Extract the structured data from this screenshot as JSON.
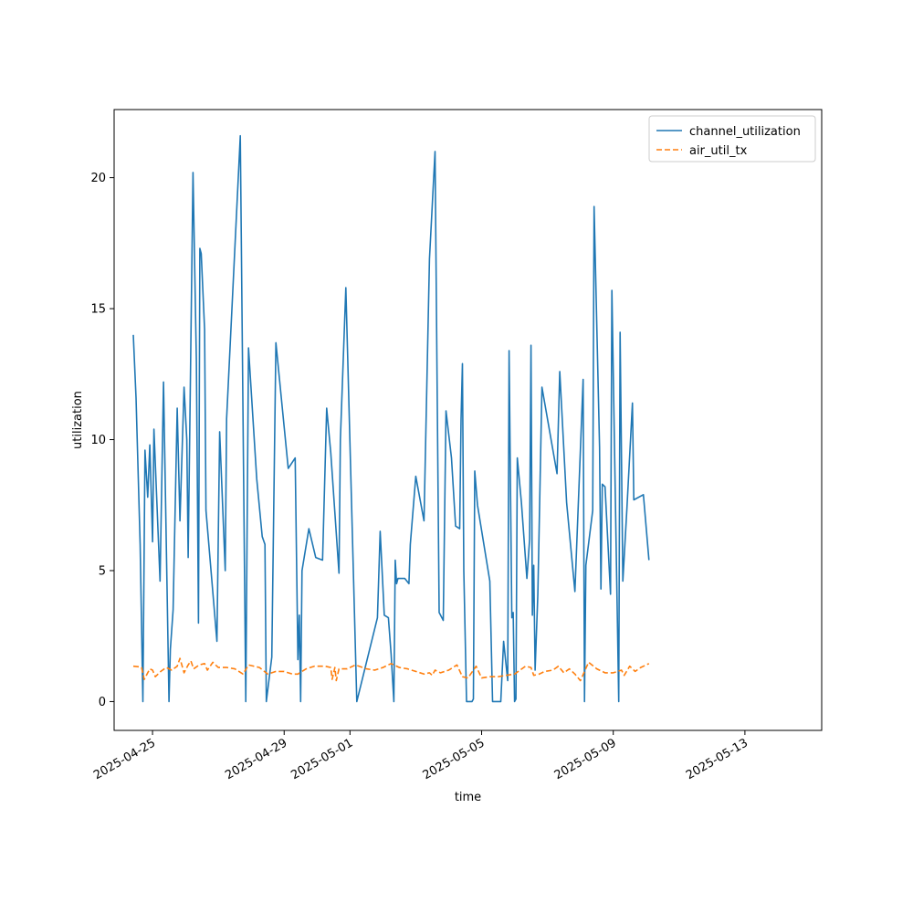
{
  "chart_data": {
    "type": "line",
    "xlabel": "time",
    "ylabel": "utilization",
    "x_type": "date",
    "xlim": [
      "2025-04-23T20:00",
      "2025-05-15T08:00"
    ],
    "ylim": [
      -1.1,
      22.6
    ],
    "x_ticks": [
      "2025-04-25",
      "2025-04-29",
      "2025-05-01",
      "2025-05-05",
      "2025-05-09",
      "2025-05-13"
    ],
    "y_ticks": [
      0,
      5,
      10,
      15,
      20
    ],
    "grid": false,
    "legend_position": "top-right",
    "series": [
      {
        "name": "channel_utilization",
        "color": "#1f77b4",
        "style": "solid",
        "points": [
          [
            "2025-04-24T10:00",
            14.0
          ],
          [
            "2025-04-24T12:00",
            11.6
          ],
          [
            "2025-04-24T15:00",
            6.0
          ],
          [
            "2025-04-24T17:00",
            0.0
          ],
          [
            "2025-04-24T18:30",
            9.6
          ],
          [
            "2025-04-24T20:30",
            7.8
          ],
          [
            "2025-04-24T22:00",
            9.8
          ],
          [
            "2025-04-25T00:00",
            6.1
          ],
          [
            "2025-04-25T01:00",
            10.4
          ],
          [
            "2025-04-25T05:30",
            4.6
          ],
          [
            "2025-04-25T08:00",
            12.2
          ],
          [
            "2025-04-25T12:00",
            0.0
          ],
          [
            "2025-04-25T13:00",
            2.0
          ],
          [
            "2025-04-25T15:00",
            3.5
          ],
          [
            "2025-04-25T18:00",
            11.2
          ],
          [
            "2025-04-25T20:00",
            6.9
          ],
          [
            "2025-04-25T23:00",
            12.0
          ],
          [
            "2025-04-26T01:00",
            10.0
          ],
          [
            "2025-04-26T02:00",
            5.5
          ],
          [
            "2025-04-26T05:30",
            20.2
          ],
          [
            "2025-04-26T08:00",
            13.0
          ],
          [
            "2025-04-26T09:30",
            3.0
          ],
          [
            "2025-04-26T10:30",
            17.3
          ],
          [
            "2025-04-26T11:30",
            17.1
          ],
          [
            "2025-04-26T14:00",
            14.2
          ],
          [
            "2025-04-26T15:00",
            7.3
          ],
          [
            "2025-04-26T23:00",
            2.3
          ],
          [
            "2025-04-27T01:00",
            10.3
          ],
          [
            "2025-04-27T05:00",
            5.0
          ],
          [
            "2025-04-27T06:00",
            10.8
          ],
          [
            "2025-04-27T16:00",
            21.6
          ],
          [
            "2025-04-27T20:00",
            0.0
          ],
          [
            "2025-04-27T22:00",
            13.5
          ],
          [
            "2025-04-28T04:00",
            8.5
          ],
          [
            "2025-04-28T08:00",
            6.3
          ],
          [
            "2025-04-28T10:00",
            6.0
          ],
          [
            "2025-04-28T11:00",
            0.0
          ],
          [
            "2025-04-28T15:00",
            1.7
          ],
          [
            "2025-04-28T18:00",
            13.7
          ],
          [
            "2025-04-29T00:00",
            10.5
          ],
          [
            "2025-04-29T03:00",
            8.9
          ],
          [
            "2025-04-29T08:00",
            9.3
          ],
          [
            "2025-04-29T10:00",
            1.6
          ],
          [
            "2025-04-29T11:00",
            3.3
          ],
          [
            "2025-04-29T12:00",
            0.0
          ],
          [
            "2025-04-29T13:00",
            5.0
          ],
          [
            "2025-04-29T18:00",
            6.6
          ],
          [
            "2025-04-29T23:00",
            5.5
          ],
          [
            "2025-04-30T04:00",
            5.4
          ],
          [
            "2025-04-30T07:00",
            11.2
          ],
          [
            "2025-04-30T10:00",
            9.5
          ],
          [
            "2025-04-30T16:00",
            4.9
          ],
          [
            "2025-04-30T17:00",
            10.0
          ],
          [
            "2025-04-30T21:00",
            15.8
          ],
          [
            "2025-05-01T05:00",
            0.0
          ],
          [
            "2025-05-01T20:00",
            3.2
          ],
          [
            "2025-05-01T22:00",
            6.5
          ],
          [
            "2025-05-02T01:00",
            3.3
          ],
          [
            "2025-05-02T04:00",
            3.2
          ],
          [
            "2025-05-02T06:00",
            1.8
          ],
          [
            "2025-05-02T08:00",
            0.0
          ],
          [
            "2025-05-02T09:00",
            5.4
          ],
          [
            "2025-05-02T10:00",
            4.5
          ],
          [
            "2025-05-02T11:00",
            4.7
          ],
          [
            "2025-05-02T16:00",
            4.7
          ],
          [
            "2025-05-02T19:00",
            4.5
          ],
          [
            "2025-05-02T20:00",
            6.0
          ],
          [
            "2025-05-03T00:00",
            8.6
          ],
          [
            "2025-05-03T06:00",
            6.9
          ],
          [
            "2025-05-03T10:00",
            16.9
          ],
          [
            "2025-05-03T14:00",
            21.0
          ],
          [
            "2025-05-03T17:00",
            3.4
          ],
          [
            "2025-05-03T20:00",
            3.1
          ],
          [
            "2025-05-03T22:00",
            11.1
          ],
          [
            "2025-05-04T02:00",
            9.3
          ],
          [
            "2025-05-04T05:00",
            6.7
          ],
          [
            "2025-05-04T08:00",
            6.6
          ],
          [
            "2025-05-04T09:00",
            10.8
          ],
          [
            "2025-05-04T10:00",
            12.9
          ],
          [
            "2025-05-04T11:00",
            5.0
          ],
          [
            "2025-05-04T13:00",
            0.0
          ],
          [
            "2025-05-04T17:00",
            0.0
          ],
          [
            "2025-05-04T18:00",
            0.1
          ],
          [
            "2025-05-04T19:00",
            8.8
          ],
          [
            "2025-05-04T21:00",
            7.5
          ],
          [
            "2025-05-05T06:00",
            4.6
          ],
          [
            "2025-05-05T08:00",
            0.0
          ],
          [
            "2025-05-05T14:00",
            0.0
          ],
          [
            "2025-05-05T16:00",
            2.3
          ],
          [
            "2025-05-05T19:00",
            0.8
          ],
          [
            "2025-05-05T20:00",
            13.4
          ],
          [
            "2025-05-05T22:00",
            3.2
          ],
          [
            "2025-05-05T23:00",
            3.4
          ],
          [
            "2025-05-06T00:00",
            0.0
          ],
          [
            "2025-05-06T01:00",
            0.1
          ],
          [
            "2025-05-06T02:00",
            9.3
          ],
          [
            "2025-05-06T05:00",
            7.6
          ],
          [
            "2025-05-06T09:00",
            4.7
          ],
          [
            "2025-05-06T11:00",
            6.2
          ],
          [
            "2025-05-06T12:00",
            13.6
          ],
          [
            "2025-05-06T13:00",
            3.3
          ],
          [
            "2025-05-06T14:00",
            5.2
          ],
          [
            "2025-05-06T15:00",
            1.2
          ],
          [
            "2025-05-06T17:00",
            4.1
          ],
          [
            "2025-05-06T20:00",
            12.0
          ],
          [
            "2025-05-07T07:00",
            8.7
          ],
          [
            "2025-05-07T09:00",
            12.6
          ],
          [
            "2025-05-07T14:00",
            7.6
          ],
          [
            "2025-05-07T20:00",
            4.2
          ],
          [
            "2025-05-08T00:00",
            9.6
          ],
          [
            "2025-05-08T02:00",
            12.3
          ],
          [
            "2025-05-08T03:00",
            0.0
          ],
          [
            "2025-05-08T04:00",
            5.2
          ],
          [
            "2025-05-08T09:00",
            7.3
          ],
          [
            "2025-05-08T10:00",
            18.9
          ],
          [
            "2025-05-08T14:00",
            9.7
          ],
          [
            "2025-05-08T15:00",
            4.3
          ],
          [
            "2025-05-08T16:00",
            8.3
          ],
          [
            "2025-05-08T18:00",
            8.2
          ],
          [
            "2025-05-08T22:00",
            4.1
          ],
          [
            "2025-05-08T23:00",
            15.7
          ],
          [
            "2025-05-09T04:00",
            0.0
          ],
          [
            "2025-05-09T05:00",
            14.1
          ],
          [
            "2025-05-09T07:00",
            4.6
          ],
          [
            "2025-05-09T10:00",
            7.4
          ],
          [
            "2025-05-09T14:00",
            11.4
          ],
          [
            "2025-05-09T15:00",
            7.7
          ],
          [
            "2025-05-09T22:00",
            7.9
          ],
          [
            "2025-05-10T02:00",
            5.4
          ]
        ]
      },
      {
        "name": "air_util_tx",
        "color": "#ff7f0e",
        "style": "dashed",
        "points": [
          [
            "2025-04-24T10:00",
            1.35
          ],
          [
            "2025-04-24T14:00",
            1.33
          ],
          [
            "2025-04-24T16:00",
            1.3
          ],
          [
            "2025-04-24T18:00",
            0.85
          ],
          [
            "2025-04-24T22:00",
            1.25
          ],
          [
            "2025-04-25T00:00",
            1.2
          ],
          [
            "2025-04-25T02:00",
            0.95
          ],
          [
            "2025-04-25T06:00",
            1.15
          ],
          [
            "2025-04-25T10:00",
            1.3
          ],
          [
            "2025-04-25T14:00",
            1.2
          ],
          [
            "2025-04-25T18:00",
            1.35
          ],
          [
            "2025-04-25T20:00",
            1.65
          ],
          [
            "2025-04-25T23:00",
            1.1
          ],
          [
            "2025-04-26T02:00",
            1.4
          ],
          [
            "2025-04-26T04:00",
            1.55
          ],
          [
            "2025-04-26T06:00",
            1.25
          ],
          [
            "2025-04-26T10:00",
            1.4
          ],
          [
            "2025-04-26T14:00",
            1.45
          ],
          [
            "2025-04-26T16:00",
            1.2
          ],
          [
            "2025-04-26T20:00",
            1.5
          ],
          [
            "2025-04-27T00:00",
            1.3
          ],
          [
            "2025-04-27T06:00",
            1.3
          ],
          [
            "2025-04-27T12:00",
            1.25
          ],
          [
            "2025-04-27T18:00",
            1.05
          ],
          [
            "2025-04-27T22:00",
            1.4
          ],
          [
            "2025-04-28T06:00",
            1.3
          ],
          [
            "2025-04-28T12:00",
            1.05
          ],
          [
            "2025-04-28T18:00",
            1.15
          ],
          [
            "2025-04-29T00:00",
            1.15
          ],
          [
            "2025-04-29T06:00",
            1.05
          ],
          [
            "2025-04-29T10:00",
            1.05
          ],
          [
            "2025-04-29T16:00",
            1.25
          ],
          [
            "2025-04-29T22:00",
            1.35
          ],
          [
            "2025-04-30T06:00",
            1.35
          ],
          [
            "2025-04-30T10:00",
            1.3
          ],
          [
            "2025-04-30T11:00",
            0.85
          ],
          [
            "2025-04-30T13:00",
            1.3
          ],
          [
            "2025-04-30T14:00",
            0.8
          ],
          [
            "2025-04-30T16:00",
            1.25
          ],
          [
            "2025-04-30T22:00",
            1.25
          ],
          [
            "2025-05-01T04:00",
            1.4
          ],
          [
            "2025-05-01T12:00",
            1.25
          ],
          [
            "2025-05-01T18:00",
            1.2
          ],
          [
            "2025-05-02T00:00",
            1.3
          ],
          [
            "2025-05-02T06:00",
            1.45
          ],
          [
            "2025-05-02T12:00",
            1.3
          ],
          [
            "2025-05-02T18:00",
            1.25
          ],
          [
            "2025-05-03T00:00",
            1.15
          ],
          [
            "2025-05-03T06:00",
            1.05
          ],
          [
            "2025-05-03T10:00",
            1.1
          ],
          [
            "2025-05-03T12:00",
            1.0
          ],
          [
            "2025-05-03T14:00",
            1.2
          ],
          [
            "2025-05-03T18:00",
            1.1
          ],
          [
            "2025-05-04T00:00",
            1.2
          ],
          [
            "2025-05-04T06:00",
            1.4
          ],
          [
            "2025-05-04T10:00",
            0.95
          ],
          [
            "2025-05-04T14:00",
            0.9
          ],
          [
            "2025-05-04T20:00",
            1.35
          ],
          [
            "2025-05-05T00:00",
            0.9
          ],
          [
            "2025-05-05T06:00",
            0.95
          ],
          [
            "2025-05-05T12:00",
            0.95
          ],
          [
            "2025-05-05T18:00",
            1.0
          ],
          [
            "2025-05-06T00:00",
            1.05
          ],
          [
            "2025-05-06T04:00",
            1.2
          ],
          [
            "2025-05-06T08:00",
            1.35
          ],
          [
            "2025-05-06T12:00",
            1.3
          ],
          [
            "2025-05-06T14:00",
            1.0
          ],
          [
            "2025-05-06T18:00",
            1.05
          ],
          [
            "2025-05-06T22:00",
            1.15
          ],
          [
            "2025-05-07T04:00",
            1.2
          ],
          [
            "2025-05-07T08:00",
            1.35
          ],
          [
            "2025-05-07T12:00",
            1.1
          ],
          [
            "2025-05-07T16:00",
            1.25
          ],
          [
            "2025-05-07T20:00",
            1.05
          ],
          [
            "2025-05-08T00:00",
            0.8
          ],
          [
            "2025-05-08T06:00",
            1.5
          ],
          [
            "2025-05-08T12:00",
            1.25
          ],
          [
            "2025-05-08T18:00",
            1.1
          ],
          [
            "2025-05-09T00:00",
            1.1
          ],
          [
            "2025-05-09T06:00",
            1.2
          ],
          [
            "2025-05-09T08:00",
            1.0
          ],
          [
            "2025-05-09T12:00",
            1.35
          ],
          [
            "2025-05-09T16:00",
            1.15
          ],
          [
            "2025-05-09T20:00",
            1.3
          ],
          [
            "2025-05-10T00:00",
            1.4
          ],
          [
            "2025-05-10T02:00",
            1.45
          ]
        ]
      }
    ]
  }
}
